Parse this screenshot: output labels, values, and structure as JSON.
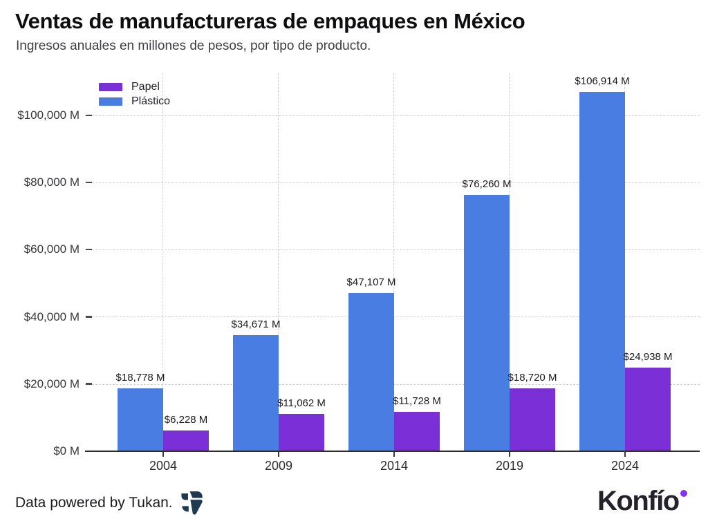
{
  "header": {
    "title": "Ventas de manufactureras de empaques en México",
    "subtitle": "Ingresos anuales en millones de pesos, por tipo de producto."
  },
  "legend": {
    "items": [
      {
        "label": "Papel",
        "color": "#7b2fd6"
      },
      {
        "label": "Plástico",
        "color": "#4a7de2"
      }
    ]
  },
  "chart_data": {
    "type": "bar",
    "title": "Ventas de manufactureras de empaques en México",
    "subtitle": "Ingresos anuales en millones de pesos, por tipo de producto.",
    "categories": [
      "2004",
      "2009",
      "2014",
      "2019",
      "2024"
    ],
    "series": [
      {
        "name": "Plástico",
        "color": "#4a7de2",
        "values": [
          18778,
          34671,
          47107,
          76260,
          106914
        ],
        "value_labels": [
          "$18,778 M",
          "$34,671 M",
          "$47,107 M",
          "$76,260 M",
          "$106,914 M"
        ]
      },
      {
        "name": "Papel",
        "color": "#7b2fd6",
        "values": [
          6228,
          11062,
          11728,
          18720,
          24938
        ],
        "value_labels": [
          "$6,228 M",
          "$11,062 M",
          "$11,728 M",
          "$18,720 M",
          "$24,938 M"
        ]
      }
    ],
    "yticks": [
      0,
      20000,
      40000,
      60000,
      80000,
      100000
    ],
    "ytick_labels": [
      "$0 M",
      "$20,000 M",
      "$40,000 M",
      "$60,000 M",
      "$80,000 M",
      "$100,000 M"
    ],
    "ylim": [
      0,
      112500
    ],
    "grid": "dashed horizontal and vertical",
    "legend_position": "top-left"
  },
  "footer": {
    "credit": "Data powered by Tukan.",
    "brand": "Konfío",
    "icons": {
      "tukan": "tukan-logo-icon",
      "konfio_dot": "konfio-dot-icon"
    },
    "colors": {
      "tukan_navy": "#1e3950",
      "konfio_dot": "#8633f0"
    }
  }
}
